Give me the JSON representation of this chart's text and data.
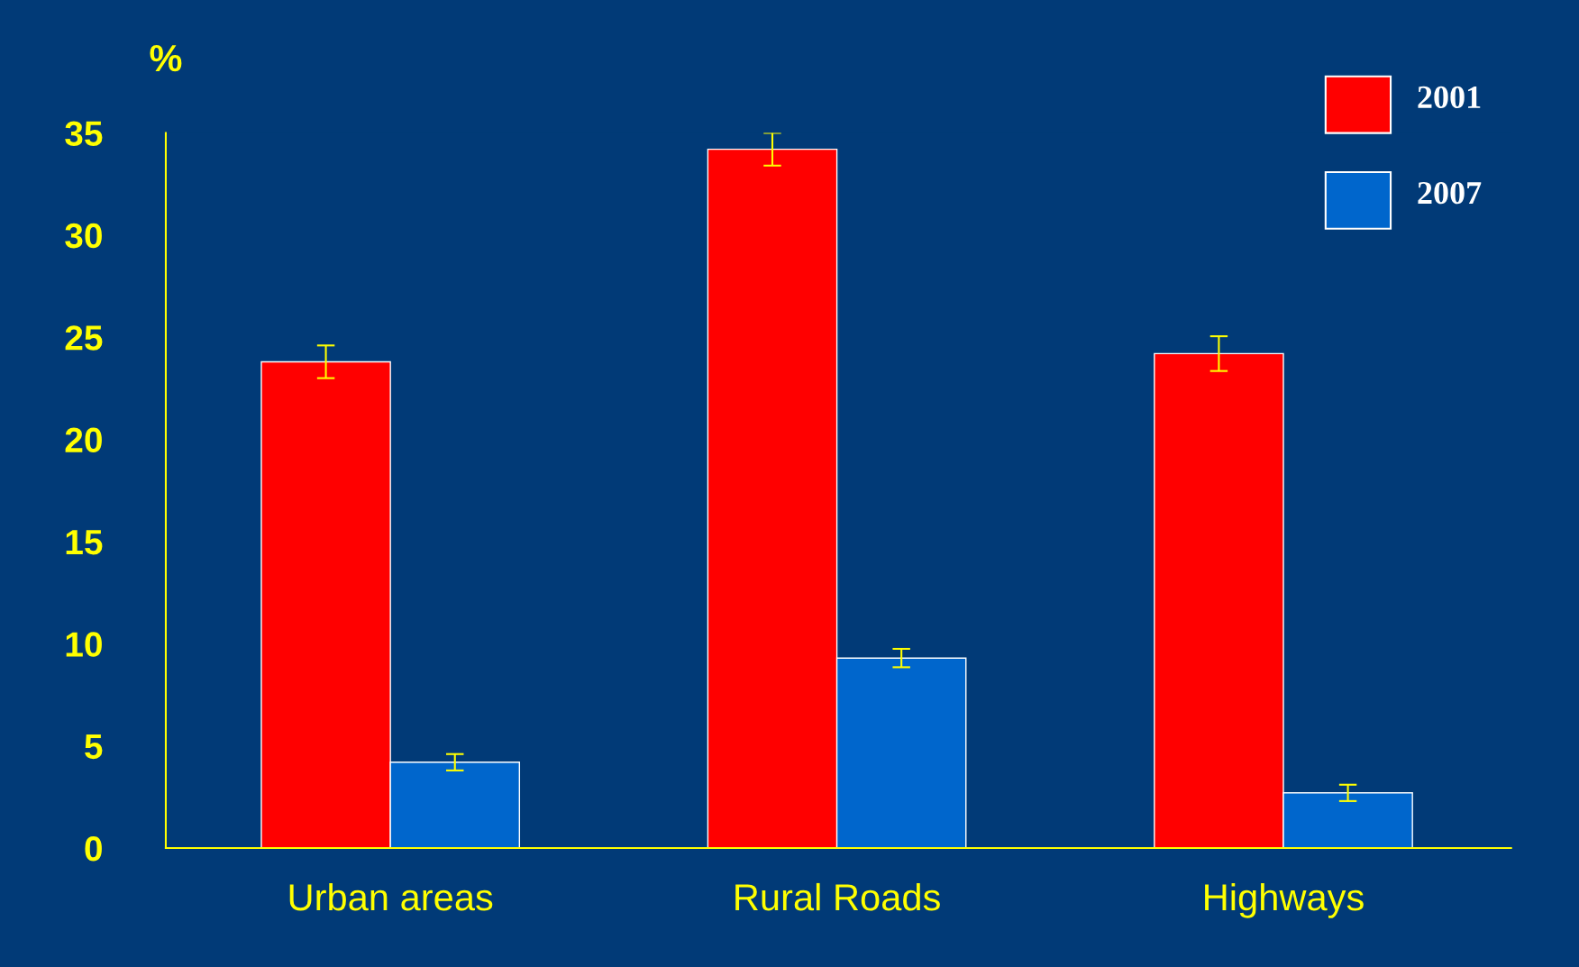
{
  "chart_data": {
    "type": "bar",
    "ylabel": "%",
    "categories": [
      "Urban areas",
      "Rural Roads",
      "Highways"
    ],
    "series": [
      {
        "name": "2001",
        "color": "#ff0000",
        "values": [
          23.8,
          34.2,
          24.2
        ],
        "errors": [
          0.8,
          0.8,
          0.85
        ]
      },
      {
        "name": "2007",
        "color": "#0066cc",
        "values": [
          4.2,
          9.3,
          2.7
        ],
        "errors": [
          0.4,
          0.45,
          0.4
        ]
      }
    ],
    "ylim": [
      0,
      35
    ],
    "yticks": [
      0,
      5,
      10,
      15,
      20,
      25,
      30,
      35
    ],
    "grid": false,
    "legend": "top right"
  }
}
